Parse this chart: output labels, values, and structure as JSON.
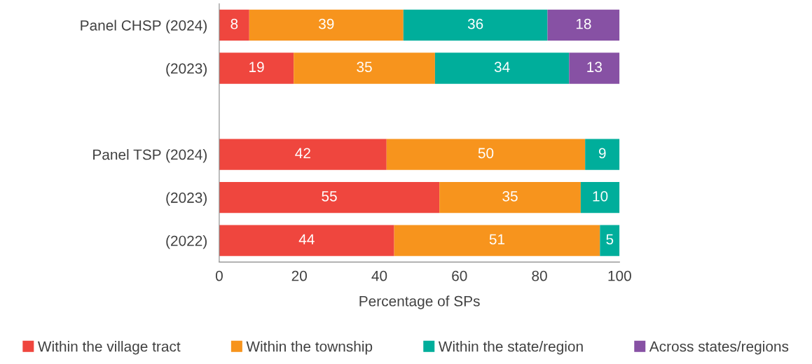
{
  "chart_data": {
    "type": "bar",
    "orientation": "horizontal",
    "stacked": true,
    "xlabel": "Percentage of SPs",
    "categories": [
      "Panel CHSP (2024)",
      "(2023)",
      null,
      "Panel TSP (2024)",
      "(2023)",
      "(2022)"
    ],
    "series": [
      {
        "name": "Within the village tract",
        "color": "#ef463e",
        "values": [
          7.5,
          18.6,
          null,
          41.8,
          55,
          43.7
        ],
        "value_labels": [
          "8",
          "19",
          null,
          "42",
          "55",
          "44"
        ]
      },
      {
        "name": "Within the township",
        "color": "#f7941d",
        "values": [
          38.5,
          35.3,
          null,
          49.6,
          35.3,
          51.4
        ],
        "value_labels": [
          "39",
          "35",
          null,
          "50",
          "35",
          "51"
        ]
      },
      {
        "name": "Within the state/region",
        "color": "#00ae9b",
        "values": [
          36,
          33.5,
          null,
          8.6,
          9.7,
          4.9
        ],
        "value_labels": [
          "36",
          "34",
          null,
          "9",
          "10",
          "5"
        ]
      },
      {
        "name": "Across states/regions",
        "color": "#8751a4",
        "values": [
          18,
          12.6,
          null,
          null,
          null,
          null
        ],
        "value_labels": [
          "18",
          "13",
          null,
          null,
          null,
          null
        ]
      }
    ],
    "xlim": [
      0,
      100
    ],
    "xticks": [
      0,
      20,
      40,
      60,
      80,
      100
    ],
    "grid": false,
    "legend": "bottom"
  }
}
